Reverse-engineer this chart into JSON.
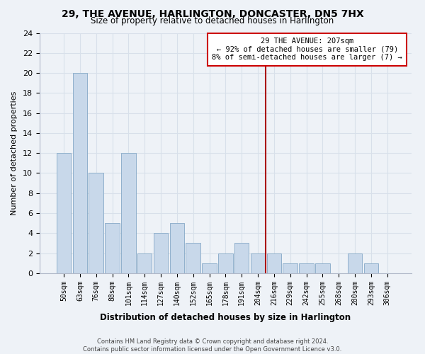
{
  "title": "29, THE AVENUE, HARLINGTON, DONCASTER, DN5 7HX",
  "subtitle": "Size of property relative to detached houses in Harlington",
  "xlabel": "Distribution of detached houses by size in Harlington",
  "ylabel": "Number of detached properties",
  "bar_labels": [
    "50sqm",
    "63sqm",
    "76sqm",
    "88sqm",
    "101sqm",
    "114sqm",
    "127sqm",
    "140sqm",
    "152sqm",
    "165sqm",
    "178sqm",
    "191sqm",
    "204sqm",
    "216sqm",
    "229sqm",
    "242sqm",
    "255sqm",
    "268sqm",
    "280sqm",
    "293sqm",
    "306sqm"
  ],
  "bar_values": [
    12,
    20,
    10,
    5,
    12,
    2,
    4,
    5,
    3,
    1,
    2,
    3,
    2,
    2,
    1,
    1,
    1,
    0,
    2,
    1,
    0
  ],
  "bar_color": "#c8d8ea",
  "bar_edge_color": "#90b0cc",
  "vline_x": 12.5,
  "vline_color": "#aa0000",
  "annotation_title": "29 THE AVENUE: 207sqm",
  "annotation_line1": "← 92% of detached houses are smaller (79)",
  "annotation_line2": "8% of semi-detached houses are larger (7) →",
  "annotation_box_color": "#ffffff",
  "annotation_box_edge": "#cc0000",
  "ylim": [
    0,
    24
  ],
  "yticks": [
    0,
    2,
    4,
    6,
    8,
    10,
    12,
    14,
    16,
    18,
    20,
    22,
    24
  ],
  "footer_line1": "Contains HM Land Registry data © Crown copyright and database right 2024.",
  "footer_line2": "Contains public sector information licensed under the Open Government Licence v3.0.",
  "background_color": "#eef2f7",
  "grid_color": "#d8e0ea"
}
